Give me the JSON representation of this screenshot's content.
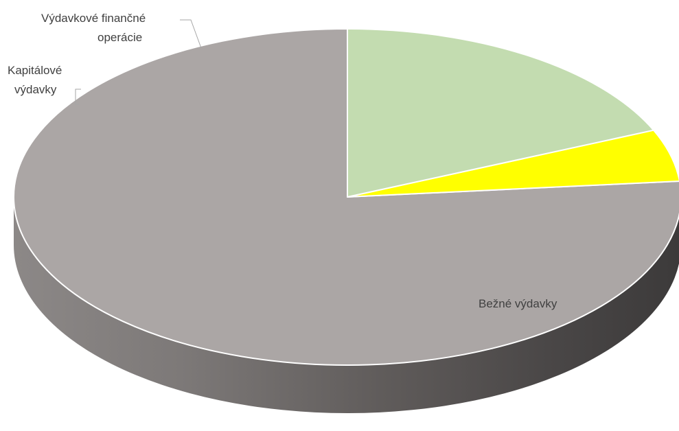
{
  "chart_data": {
    "type": "pie",
    "title": "",
    "categories": [
      "Bežné výdavky",
      "Kapitálové výdavky",
      "Výdavkové finančné operácie"
    ],
    "values": [
      76.5,
      5.0,
      18.5
    ],
    "value_unit": "percent of total (estimated)",
    "colors": [
      "#aba6a5",
      "#ffff00",
      "#c3dcb0"
    ],
    "side_colors": [
      "#8a8584",
      "#b8b800",
      "#9ab58a"
    ],
    "style": "3d-tilted-pie",
    "legend": "none",
    "data_labels": "category-name",
    "labels": {
      "bezne": "Bežné výdavky",
      "kapitalove_line1": "Kapitálové",
      "kapitalove_line2": "výdavky",
      "financne_line1": "Výdavkové finančné",
      "financne_line2": "operácie"
    }
  }
}
